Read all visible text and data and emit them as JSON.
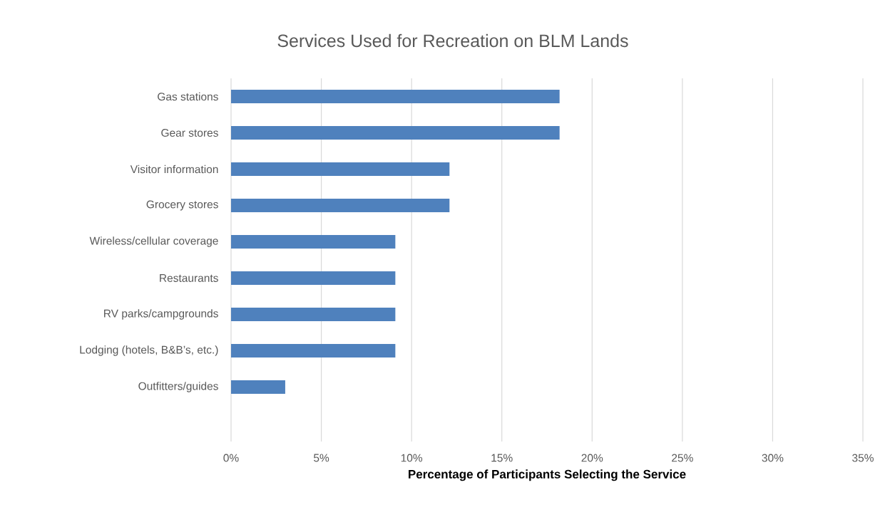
{
  "chart_data": {
    "type": "bar",
    "orientation": "horizontal",
    "title": "Services Used for Recreation on BLM Lands",
    "xlabel": "Percentage of Participants Selecting the Service",
    "categories": [
      "Gas stations",
      "Gear stores",
      "Visitor information",
      "Grocery stores",
      "Wireless/cellular coverage",
      "Restaurants",
      "RV parks/campgrounds",
      "Lodging (hotels, B&B’s, etc.)",
      "Outfitters/guides"
    ],
    "values": [
      18.2,
      18.2,
      12.1,
      12.1,
      9.1,
      9.1,
      9.1,
      9.1,
      3.0
    ],
    "color": "#4f81bd",
    "xlim": [
      0,
      35
    ],
    "xticks": [
      {
        "value": 0,
        "label": "0%"
      },
      {
        "value": 5,
        "label": "5%"
      },
      {
        "value": 10,
        "label": "10%"
      },
      {
        "value": 15,
        "label": "15%"
      },
      {
        "value": 20,
        "label": "20%"
      },
      {
        "value": 25,
        "label": "25%"
      },
      {
        "value": 30,
        "label": "30%"
      },
      {
        "value": 35,
        "label": "35%"
      }
    ],
    "grid": "x"
  }
}
